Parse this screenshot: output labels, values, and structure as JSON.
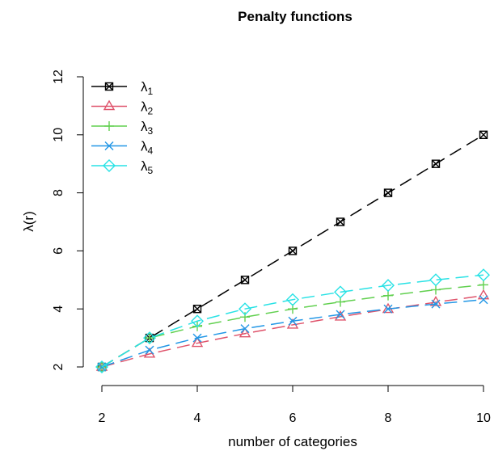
{
  "chart_data": {
    "type": "line",
    "title": "Penalty functions",
    "xlabel": "number of categories",
    "ylabel": "λ(r)",
    "xlim": [
      2,
      10
    ],
    "ylim": [
      2,
      12
    ],
    "xticks": [
      "2",
      "4",
      "6",
      "8",
      "10"
    ],
    "yticks": [
      "2",
      "4",
      "6",
      "8",
      "10",
      "12"
    ],
    "grid": false,
    "legend_position": "top-left",
    "x": [
      2,
      3,
      4,
      5,
      6,
      7,
      8,
      9,
      10
    ],
    "series": [
      {
        "name": "λ1",
        "base": "λ",
        "sub": "1",
        "color": "#000000",
        "marker": "boxed-x",
        "values": [
          2,
          3,
          4,
          5,
          6,
          7,
          8,
          9,
          10
        ]
      },
      {
        "name": "λ2",
        "base": "λ",
        "sub": "2",
        "color": "#df536b",
        "marker": "triangle",
        "values": [
          2,
          2.45,
          2.82,
          3.15,
          3.45,
          3.73,
          3.99,
          4.23,
          4.46
        ]
      },
      {
        "name": "λ3",
        "base": "λ",
        "sub": "3",
        "color": "#61d04f",
        "marker": "plus",
        "values": [
          2,
          3,
          3.4,
          3.72,
          4.0,
          4.24,
          4.46,
          4.66,
          4.83
        ]
      },
      {
        "name": "λ4",
        "base": "λ",
        "sub": "4",
        "color": "#2297e6",
        "marker": "x",
        "values": [
          2,
          2.58,
          3.0,
          3.32,
          3.58,
          3.81,
          4.0,
          4.17,
          4.32
        ]
      },
      {
        "name": "λ5",
        "base": "λ",
        "sub": "5",
        "color": "#28e2e5",
        "marker": "diamond",
        "values": [
          2,
          3,
          3.58,
          4.0,
          4.32,
          4.58,
          4.81,
          5.0,
          5.17
        ]
      }
    ]
  }
}
